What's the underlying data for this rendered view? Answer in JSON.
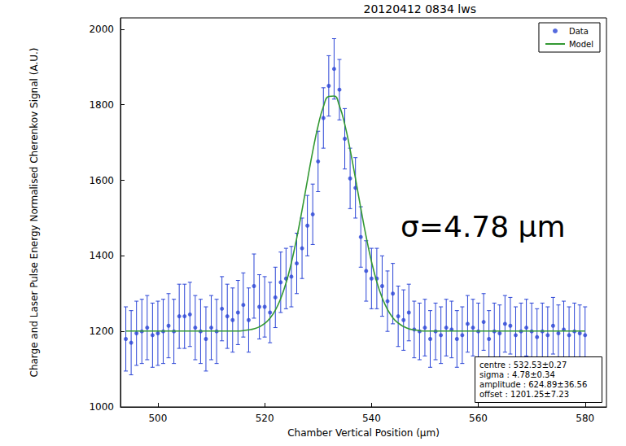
{
  "chart_data": {
    "type": "scatter",
    "title": "20120412 0834 lws",
    "x_label": "Chamber Vertical Position (μm)",
    "y_label": "Charge and Laser Pulse Energy Normalised Cherenkov Signal (A.U.)",
    "x": [
      494,
      495,
      496,
      497,
      498,
      499,
      500,
      501,
      502,
      503,
      504,
      505,
      506,
      507,
      508,
      509,
      510,
      511,
      512,
      513,
      514,
      515,
      516,
      517,
      518,
      519,
      520,
      521,
      522,
      523,
      524,
      525,
      526,
      527,
      528,
      529,
      530,
      531,
      532,
      533,
      534,
      535,
      536,
      537,
      538,
      539,
      540,
      541,
      542,
      543,
      544,
      545,
      546,
      547,
      548,
      549,
      550,
      551,
      552,
      553,
      554,
      555,
      556,
      557,
      558,
      559,
      560,
      561,
      562,
      563,
      564,
      565,
      566,
      567,
      568,
      569,
      570,
      571,
      572,
      573,
      574,
      575,
      576,
      577,
      578,
      579,
      580
    ],
    "series": [
      {
        "name": "Data",
        "type": "scatter",
        "color": "#2b45d6",
        "marker": "circle",
        "values": [
          1180,
          1170,
          1195,
          1200,
          1210,
          1190,
          1195,
          1200,
          1215,
          1200,
          1240,
          1240,
          1245,
          1210,
          1200,
          1180,
          1210,
          1200,
          1260,
          1240,
          1230,
          1250,
          1270,
          1230,
          1320,
          1265,
          1265,
          1250,
          1290,
          1330,
          1340,
          1345,
          1380,
          1420,
          1480,
          1510,
          1650,
          1765,
          1850,
          1895,
          1840,
          1710,
          1605,
          1580,
          1450,
          1360,
          1340,
          1340,
          1320,
          1280,
          1300,
          1240,
          1230,
          1250,
          1205,
          1200,
          1210,
          1180,
          1200,
          1190,
          1210,
          1205,
          1180,
          1190,
          1220,
          1210,
          1200,
          1225,
          1180,
          1200,
          1195,
          1220,
          1215,
          1190,
          1200,
          1210,
          1200,
          1185,
          1200,
          1190,
          1215,
          1195,
          1205,
          1190,
          1200,
          1195,
          1190
        ],
        "errors": [
          85,
          85,
          85,
          85,
          85,
          85,
          85,
          85,
          85,
          85,
          85,
          85,
          85,
          85,
          85,
          85,
          85,
          85,
          85,
          85,
          85,
          85,
          85,
          85,
          85,
          85,
          80,
          80,
          80,
          80,
          80,
          80,
          80,
          80,
          80,
          80,
          80,
          80,
          80,
          80,
          80,
          80,
          80,
          80,
          80,
          80,
          80,
          80,
          80,
          80,
          80,
          80,
          80,
          75,
          75,
          75,
          75,
          75,
          75,
          75,
          75,
          75,
          75,
          75,
          75,
          75,
          75,
          75,
          75,
          75,
          75,
          75,
          75,
          75,
          75,
          75,
          75,
          75,
          75,
          75,
          75,
          75,
          75,
          75,
          75,
          75,
          75
        ]
      },
      {
        "name": "Model",
        "type": "line",
        "color": "#339933",
        "line_style": "solid",
        "values": [
          1201,
          1201,
          1201,
          1201,
          1201,
          1201,
          1201,
          1201,
          1201,
          1201,
          1201,
          1201,
          1201,
          1201,
          1201,
          1201,
          1201,
          1201,
          1201,
          1201,
          1201,
          1201,
          1202,
          1204,
          1207,
          1212,
          1221,
          1235,
          1256,
          1287,
          1328,
          1382,
          1447,
          1521,
          1600,
          1677,
          1744,
          1795,
          1822,
          1823,
          1797,
          1748,
          1681,
          1605,
          1526,
          1451,
          1385,
          1331,
          1289,
          1258,
          1236,
          1222,
          1213,
          1207,
          1204,
          1202,
          1201,
          1201,
          1201,
          1201,
          1201,
          1201,
          1201,
          1201,
          1201,
          1201,
          1201,
          1201,
          1201,
          1201,
          1201,
          1201,
          1201,
          1201,
          1201,
          1201,
          1201,
          1201,
          1201,
          1201,
          1201,
          1201,
          1201,
          1201,
          1201,
          1201,
          1201
        ]
      }
    ],
    "xlim": [
      493,
      584
    ],
    "xticks": [
      500,
      520,
      540,
      560,
      580
    ],
    "ylim": [
      1000,
      2030
    ],
    "yticks": [
      1000,
      1200,
      1400,
      1600,
      1800,
      2000
    ],
    "grid": false,
    "legend": "upper right",
    "annotations": [
      "σ=4.78 μm"
    ],
    "fit_box": [
      "centre : 532.53±0.27",
      "sigma : 4.78±0.34",
      "amplitude : 624.89±36.56",
      "offset : 1201.25±7.23"
    ]
  }
}
